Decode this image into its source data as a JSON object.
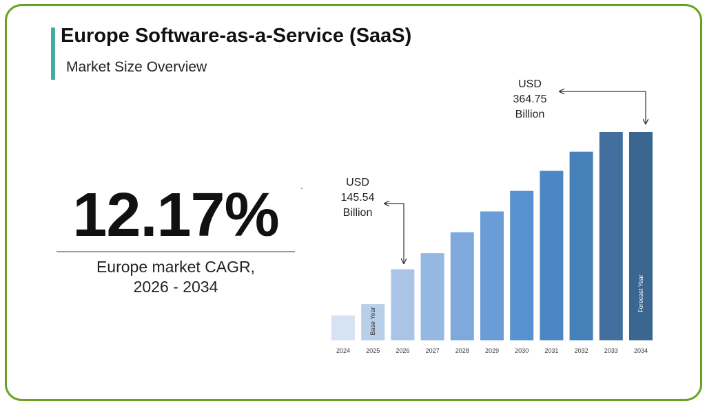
{
  "title": "Europe Software-as-a-Service (SaaS)",
  "subtitle": "Market Size Overview",
  "cagr": {
    "value": "12.17%",
    "label_line1": "Europe market CAGR,",
    "label_line2": "2026 - 2034"
  },
  "colors": {
    "border": "#6aa121",
    "accent": "#3fae9e"
  },
  "chart_data": {
    "type": "bar",
    "categories": [
      "2024",
      "2025",
      "2026",
      "2027",
      "2028",
      "2029",
      "2030",
      "2031",
      "2032",
      "2033",
      "2034"
    ],
    "values": [
      51.1,
      74.4,
      145.54,
      178.5,
      221.3,
      263.9,
      305.9,
      346.9,
      386.1,
      426.4,
      364.75
    ],
    "bar_colors": [
      "#d5e3f2",
      "#b8cfe9",
      "#a9c4e6",
      "#95b8e1",
      "#7fa9dd",
      "#6a9dd8",
      "#5791cf",
      "#4c87c3",
      "#4680b8",
      "#426f9d",
      "#3a6690"
    ],
    "bar_labels": {
      "2025": "Base Year",
      "2034": "Forecast Year"
    },
    "annotations": [
      {
        "category": "2026",
        "lines": [
          "USD",
          "145.54",
          "Billion"
        ]
      },
      {
        "category": "2034",
        "lines": [
          "USD",
          "364.75",
          "Billion"
        ]
      }
    ],
    "title": "",
    "xlabel": "",
    "ylabel": ""
  }
}
